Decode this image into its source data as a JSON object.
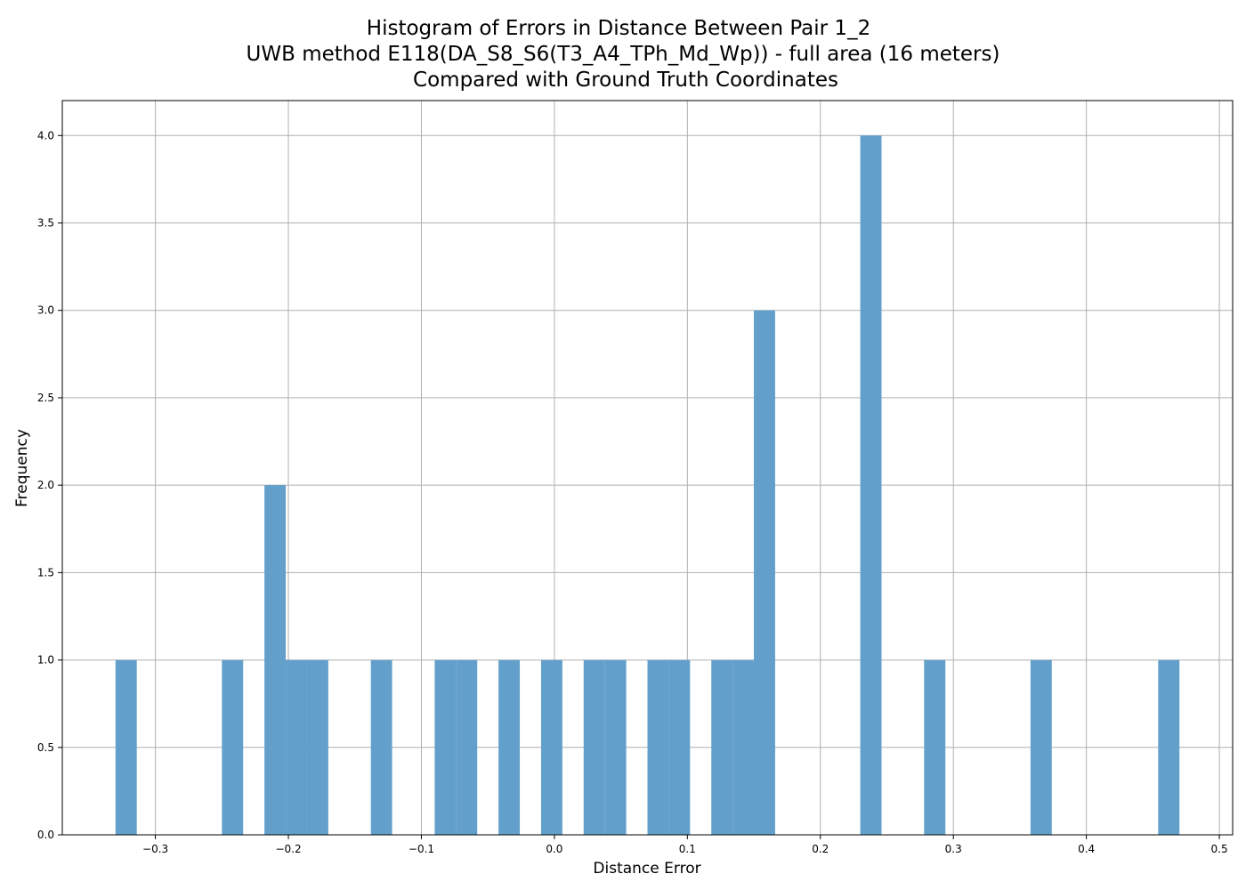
{
  "chart_data": {
    "type": "bar",
    "title_lines": [
      "Histogram of Errors in Distance Between Pair 1_2",
      "UWB method E118(DA_S8_S6(T3_A4_TPh_Md_Wp)) - full area (16 meters)",
      "Compared with Ground Truth Coordinates"
    ],
    "xlabel": "Distance Error",
    "ylabel": "Frequency",
    "xlim": [
      -0.37,
      0.51
    ],
    "ylim": [
      0,
      4.2
    ],
    "grid": true,
    "bar_color": "#62a0cb",
    "bin_width": 0.016,
    "xticks": [
      -0.3,
      -0.2,
      -0.1,
      0.0,
      0.1,
      0.2,
      0.3,
      0.4,
      0.5
    ],
    "xtick_labels": [
      "−0.3",
      "−0.2",
      "−0.1",
      "0.0",
      "0.1",
      "0.2",
      "0.3",
      "0.4",
      "0.5"
    ],
    "yticks": [
      0.0,
      0.5,
      1.0,
      1.5,
      2.0,
      2.5,
      3.0,
      3.5,
      4.0
    ],
    "ytick_labels": [
      "0.0",
      "0.5",
      "1.0",
      "1.5",
      "2.0",
      "2.5",
      "3.0",
      "3.5",
      "4.0"
    ],
    "bins": [
      {
        "x": -0.33,
        "count": 1
      },
      {
        "x": -0.25,
        "count": 1
      },
      {
        "x": -0.218,
        "count": 2
      },
      {
        "x": -0.202,
        "count": 1
      },
      {
        "x": -0.186,
        "count": 1
      },
      {
        "x": -0.138,
        "count": 1
      },
      {
        "x": -0.09,
        "count": 1
      },
      {
        "x": -0.074,
        "count": 1
      },
      {
        "x": -0.042,
        "count": 1
      },
      {
        "x": -0.01,
        "count": 1
      },
      {
        "x": 0.022,
        "count": 1
      },
      {
        "x": 0.038,
        "count": 1
      },
      {
        "x": 0.07,
        "count": 1
      },
      {
        "x": 0.086,
        "count": 1
      },
      {
        "x": 0.118,
        "count": 1
      },
      {
        "x": 0.134,
        "count": 1
      },
      {
        "x": 0.15,
        "count": 3
      },
      {
        "x": 0.23,
        "count": 4
      },
      {
        "x": 0.278,
        "count": 1
      },
      {
        "x": 0.358,
        "count": 1
      },
      {
        "x": 0.454,
        "count": 1
      }
    ]
  }
}
